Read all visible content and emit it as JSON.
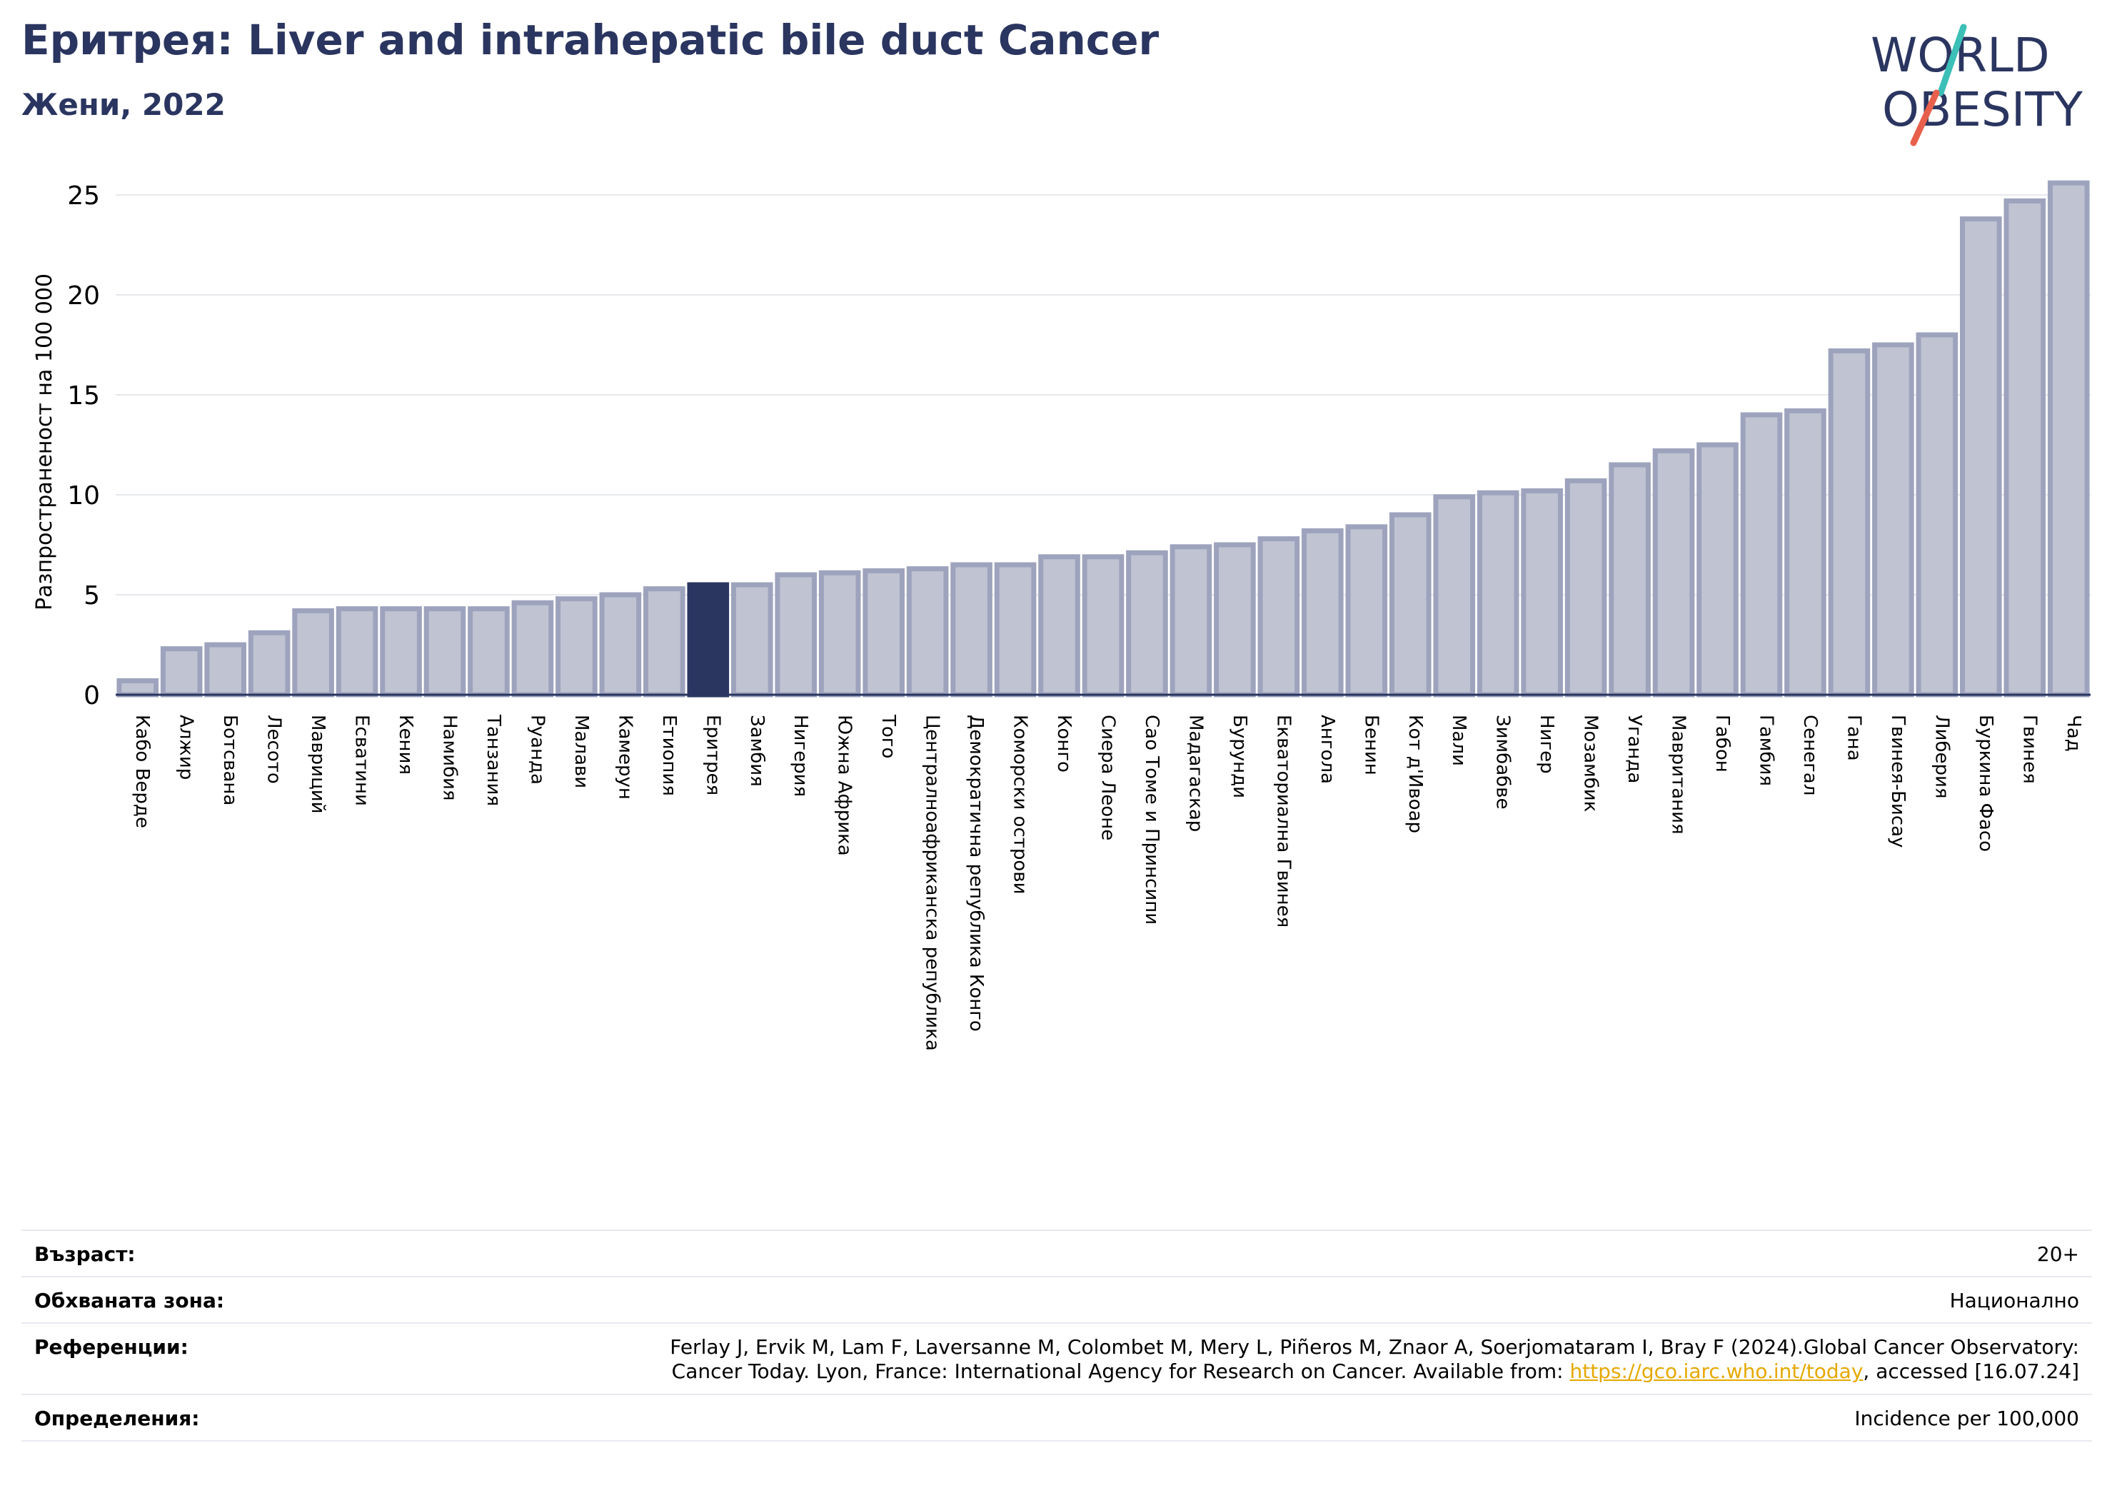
{
  "header": {
    "title": "Еритрея: Liver and intrahepatic bile duct Cancer",
    "subtitle": "Жени, 2022"
  },
  "logo": {
    "line1": "WORLD",
    "line2": "OBESITY"
  },
  "colors": {
    "bar": "#bfc3d2",
    "bar_edge": "#9ea3bd",
    "highlight": "#2a3560",
    "title": "#2a3560",
    "slash_teal": "#3bbfb6",
    "slash_red": "#e8604c"
  },
  "chart_data": {
    "type": "bar",
    "ylabel": "Разпространеност  на 100 000",
    "ylim": [
      0,
      26
    ],
    "yticks": [
      0,
      5,
      10,
      15,
      20,
      25
    ],
    "grid": true,
    "highlight": "Еритрея",
    "categories": [
      "Кабо Верде",
      "Алжир",
      "Ботсвана",
      "Лесото",
      "Мавриций",
      "Есватини",
      "Кения",
      "Намибия",
      "Танзания",
      "Руанда",
      "Малави",
      "Камерун",
      "Етиопия",
      "Еритрея",
      "Замбия",
      "Нигерия",
      "Южна Африка",
      "Того",
      "Централноафриканска република",
      "Демократична република Конго",
      "Коморски острови",
      "Конго",
      "Сиера Леоне",
      "Сао Томе и Принсипи",
      "Мадагаскар",
      "Бурунди",
      "Екваториална Гвинея",
      "Ангола",
      "Бенин",
      "Кот д'Ивоар",
      "Мали",
      "Зимбабве",
      "Нигер",
      "Мозамбик",
      "Уганда",
      "Мавритания",
      "Габон",
      "Гамбия",
      "Сенегал",
      "Гана",
      "Гвинея-Бисау",
      "Либерия",
      "Буркина Фасо",
      "Гвинея",
      "Чад"
    ],
    "values": [
      0.7,
      2.3,
      2.5,
      3.1,
      4.2,
      4.3,
      4.3,
      4.3,
      4.3,
      4.6,
      4.8,
      5.0,
      5.3,
      5.5,
      5.5,
      6.0,
      6.1,
      6.2,
      6.3,
      6.5,
      6.5,
      6.9,
      6.9,
      7.1,
      7.4,
      7.5,
      7.8,
      8.2,
      8.4,
      9.0,
      9.9,
      10.1,
      10.2,
      10.7,
      11.5,
      12.2,
      12.5,
      14.0,
      14.2,
      17.2,
      17.5,
      18.0,
      23.8,
      24.7,
      25.6
    ]
  },
  "info": {
    "age_label": "Възраст:",
    "age_value": "20+",
    "area_label": "Обхваната зона:",
    "area_value": "Национално",
    "ref_label": "Референции:",
    "ref_line1": "Ferlay J, Ervik M, Lam F, Laversanne M, Colombet M, Mery L, Piñeros M, Znaor A, Soerjomataram I, Bray F (2024).Global Cancer Observatory:",
    "ref_line2_pre": "Cancer Today. Lyon, France: International Agency for Research on Cancer. Available from: ",
    "ref_link": "https://gco.iarc.who.int/today",
    "ref_line2_post": ", accessed [16.07.24]",
    "def_label": "Определения:",
    "def_value": "Incidence per 100,000"
  }
}
